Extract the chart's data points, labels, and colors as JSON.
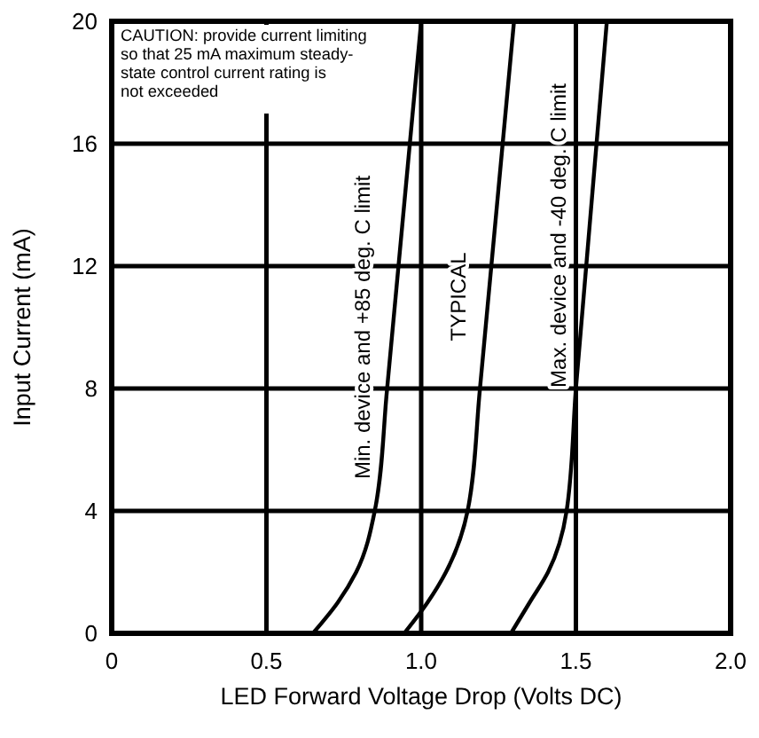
{
  "chart_data": {
    "type": "line",
    "xlabel": "LED Forward Voltage Drop (Volts DC)",
    "ylabel": "Input Current (mA)",
    "xlim": [
      0,
      2
    ],
    "ylim": [
      0,
      20
    ],
    "xticks": [
      0,
      {
        "value": 0.5,
        "label": "0.5"
      },
      {
        "value": 1,
        "label": "1.0"
      },
      {
        "value": 1.5,
        "label": "1.5"
      },
      {
        "value": 2,
        "label": "2.0"
      }
    ],
    "yticks": [
      0,
      4,
      8,
      12,
      16,
      20
    ],
    "grid": true,
    "marker": "none",
    "line_style": "solid",
    "series": [
      {
        "name": "Min. device and +85 deg. C limit",
        "color": "#000000",
        "x": [
          0.65,
          0.73,
          0.79,
          0.85,
          0.89,
          1.0
        ],
        "values": [
          0,
          1,
          2,
          4,
          8,
          20
        ]
      },
      {
        "name": "TYPICAL",
        "color": "#000000",
        "x": [
          0.945,
          1.02,
          1.08,
          1.15,
          1.19,
          1.3
        ],
        "values": [
          0,
          1,
          2,
          4,
          8,
          20
        ]
      },
      {
        "name": "Max. device and -40 deg. C limit",
        "color": "#000000",
        "x": [
          1.29,
          1.35,
          1.41,
          1.47,
          1.5,
          1.6
        ],
        "values": [
          0,
          1,
          2,
          4,
          8,
          20
        ]
      }
    ],
    "annotations": [
      "CAUTION: provide current limiting so that 25 mA maximum steady-state control current rating is not exceeded"
    ]
  }
}
